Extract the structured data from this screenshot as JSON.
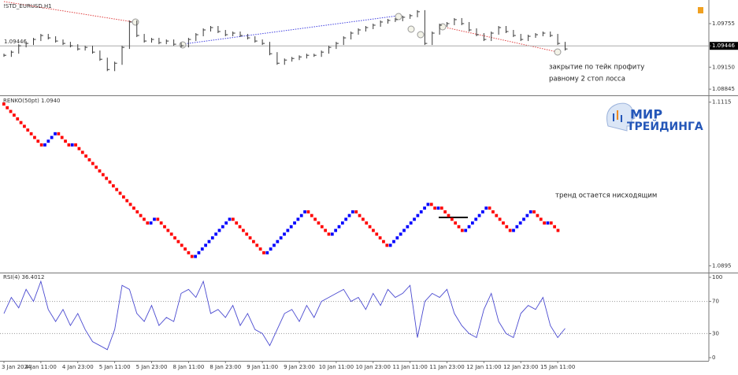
{
  "chart_data": [
    {
      "type": "ohlc",
      "title": "!STD_EURUSD,H1",
      "values": [
        1.09315,
        1.09359,
        1.09447,
        1.0948,
        1.09535,
        1.0959,
        1.09557,
        1.09513,
        1.0948,
        1.09447,
        1.09403,
        1.09425,
        1.09359,
        1.0926,
        1.09117,
        1.09205,
        1.09425,
        1.09777,
        1.0959,
        1.09513,
        1.09535,
        1.09491,
        1.09513,
        1.09469,
        1.09447,
        1.09535,
        1.09601,
        1.09667,
        1.097,
        1.09645,
        1.09601,
        1.09623,
        1.0959,
        1.09557,
        1.09513,
        1.0948,
        1.09337,
        1.09205,
        1.09249,
        1.09271,
        1.09293,
        1.09315,
        1.09315,
        1.09359,
        1.09425,
        1.0948,
        1.09557,
        1.09623,
        1.09667,
        1.097,
        1.09733,
        1.09777,
        1.09799,
        1.0981,
        1.09843,
        1.09865,
        1.0992,
        1.0948,
        1.09623,
        1.09733,
        1.09755,
        1.0981,
        1.09755,
        1.09667,
        1.09601,
        1.09535,
        1.09623,
        1.097,
        1.09645,
        1.0959,
        1.09535,
        1.09579,
        1.09601,
        1.09623,
        1.0959,
        1.0948,
        1.09403
      ],
      "color": "#3a3a3a",
      "ylim": [
        1.0877,
        1.1005
      ],
      "yticks": [
        1.09755,
        1.09446,
        {
          "value": 1.0915,
          "label": "1.09150"
        },
        1.08845
      ],
      "price_line": 1.09446,
      "annotation": [
        "закрытие по тейк профиту",
        "равному 2 стоп лосса"
      ]
    },
    {
      "type": "renko",
      "title": "RENKO(50pt) 1.0940",
      "values": [
        1.111,
        1.1105,
        1.11,
        1.1095,
        1.109,
        1.1085,
        1.108,
        1.1075,
        1.107,
        1.1065,
        1.106,
        1.1055,
        1.106,
        1.1065,
        1.107,
        1.1075,
        1.107,
        1.1065,
        1.106,
        1.1055,
        1.106,
        1.1055,
        1.105,
        1.1045,
        1.104,
        1.1035,
        1.103,
        1.1025,
        1.102,
        1.1015,
        1.101,
        1.1005,
        1.1,
        1.0995,
        1.099,
        1.0985,
        1.098,
        1.0975,
        1.097,
        1.0965,
        1.096,
        1.0955,
        1.095,
        1.0955,
        1.096,
        1.0955,
        1.095,
        1.0945,
        1.094,
        1.0935,
        1.093,
        1.0925,
        1.092,
        1.0915,
        1.091,
        1.0905,
        1.091,
        1.0915,
        1.092,
        1.0925,
        1.093,
        1.0935,
        1.094,
        1.0945,
        1.095,
        1.0955,
        1.096,
        1.0955,
        1.095,
        1.0945,
        1.094,
        1.0935,
        1.093,
        1.0925,
        1.092,
        1.0915,
        1.091,
        1.0915,
        1.092,
        1.0925,
        1.093,
        1.0935,
        1.094,
        1.0945,
        1.095,
        1.0955,
        1.096,
        1.0965,
        1.097,
        1.0965,
        1.096,
        1.0955,
        1.095,
        1.0945,
        1.094,
        1.0935,
        1.094,
        1.0945,
        1.095,
        1.0955,
        1.096,
        1.0965,
        1.097,
        1.0965,
        1.096,
        1.0955,
        1.095,
        1.0945,
        1.094,
        1.0935,
        1.093,
        1.0925,
        1.092,
        1.0925,
        1.093,
        1.0935,
        1.094,
        1.0945,
        1.095,
        1.0955,
        1.096,
        1.0965,
        1.097,
        1.0975,
        1.098,
        1.0975,
        1.097,
        1.0975,
        1.097,
        1.0965,
        1.096,
        1.0955,
        1.095,
        1.0945,
        1.094,
        1.0945,
        1.095,
        1.0955,
        1.096,
        1.0965,
        1.097,
        1.0975,
        1.097,
        1.0965,
        1.096,
        1.0955,
        1.095,
        1.0945,
        1.094,
        1.0945,
        1.095,
        1.0955,
        1.096,
        1.0965,
        1.097,
        1.0965,
        1.096,
        1.0955,
        1.095,
        1.0955,
        1.095,
        1.0945,
        1.094
      ],
      "up_color": "#0000ff",
      "down_color": "#ff0000",
      "ylim": [
        1.0889,
        1.1121
      ],
      "yticks": [
        1.1115,
        1.0895
      ],
      "annotation": "тренд остается нисходящим"
    },
    {
      "type": "line",
      "title": "RSI(4) 36.4012",
      "categories": [
        "3 Jan 2024",
        null,
        null,
        null,
        null,
        "4 Jan 11:00",
        null,
        null,
        null,
        null,
        "4 Jan 23:00",
        null,
        null,
        null,
        null,
        "5 Jan 11:00",
        null,
        null,
        null,
        null,
        "5 Jan 23:00",
        null,
        null,
        null,
        null,
        "8 Jan 11:00",
        null,
        null,
        null,
        null,
        "8 Jan 23:00",
        null,
        null,
        null,
        null,
        "9 Jan 11:00",
        null,
        null,
        null,
        null,
        "9 Jan 23:00",
        null,
        null,
        null,
        null,
        "10 Jan 11:00",
        null,
        null,
        null,
        null,
        "10 Jan 23:00",
        null,
        null,
        null,
        null,
        "11 Jan 11:00",
        null,
        null,
        null,
        null,
        "11 Jan 23:00",
        null,
        null,
        null,
        null,
        "12 Jan 11:00",
        null,
        null,
        null,
        null,
        "12 Jan 23:00",
        null,
        null,
        null,
        null,
        "15 Jan 11:00",
        null
      ],
      "values": [
        55,
        75,
        62,
        85,
        70,
        95,
        60,
        45,
        60,
        40,
        55,
        35,
        20,
        15,
        10,
        35,
        90,
        85,
        55,
        45,
        65,
        40,
        50,
        45,
        80,
        85,
        75,
        95,
        55,
        60,
        50,
        65,
        40,
        55,
        35,
        30,
        15,
        35,
        55,
        60,
        45,
        65,
        50,
        70,
        75,
        80,
        85,
        70,
        75,
        60,
        80,
        65,
        85,
        75,
        80,
        90,
        25,
        70,
        80,
        75,
        85,
        55,
        40,
        30,
        25,
        60,
        80,
        45,
        30,
        25,
        55,
        65,
        60,
        75,
        40,
        25,
        36.4012
      ],
      "color": "#4a4ad0",
      "ylim": [
        0,
        100
      ],
      "yticks": [
        100,
        70,
        30,
        0
      ]
    }
  ],
  "logo": {
    "line1": "МИР",
    "line2": "ТРЕЙДИНГА"
  }
}
